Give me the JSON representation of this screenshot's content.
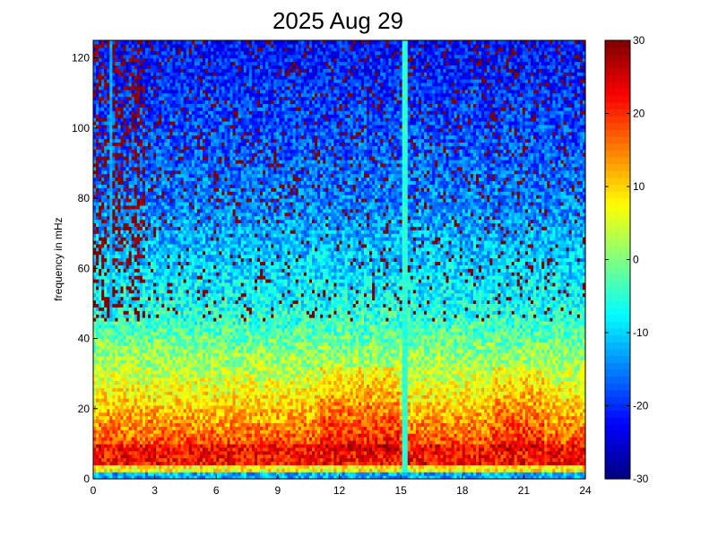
{
  "chart_data": {
    "type": "heatmap",
    "title": "2025 Aug 29",
    "xlabel": "",
    "ylabel": "frequency in mHz",
    "xlim": [
      0,
      24
    ],
    "ylim": [
      0,
      125
    ],
    "xticks": [
      0,
      3,
      6,
      9,
      12,
      15,
      18,
      21,
      24
    ],
    "yticks": [
      0,
      20,
      40,
      60,
      80,
      100,
      120
    ],
    "colorbar": {
      "colormap": "jet",
      "range": [
        -30,
        30
      ],
      "ticks": [
        -30,
        -20,
        -10,
        0,
        10,
        20,
        30
      ]
    },
    "grid": false,
    "values_description_rows": [
      {
        "freq_mHz": [
          0,
          2
        ],
        "level": "~ -10 (cyan band)"
      },
      {
        "freq_mHz": [
          2,
          10
        ],
        "level": "~ +20 to +30 (red), strongest near 12h and 20-22h"
      },
      {
        "freq_mHz": [
          10,
          30
        ],
        "level": "~ +5 to +20 (yellow/orange), peak around 11-14h"
      },
      {
        "freq_mHz": [
          30,
          50
        ],
        "level": "~ -5 to +5 (cyan/green)"
      },
      {
        "freq_mHz": [
          50,
          80
        ],
        "level": "~ -10 to -20 (light blue)"
      },
      {
        "freq_mHz": [
          80,
          125
        ],
        "level": "~ -15 to -25 (blue) with scattered +30 dark red speckles, denser for t < 2.5h"
      }
    ],
    "features": [
      {
        "type": "vertical_line",
        "x_hour": 15.2,
        "level": "~ -5 (cyan) extending full frequency range"
      },
      {
        "type": "vertical_line",
        "x_hour": 0.9,
        "level": "~ -10 (light blue) above 45 mHz"
      }
    ]
  }
}
